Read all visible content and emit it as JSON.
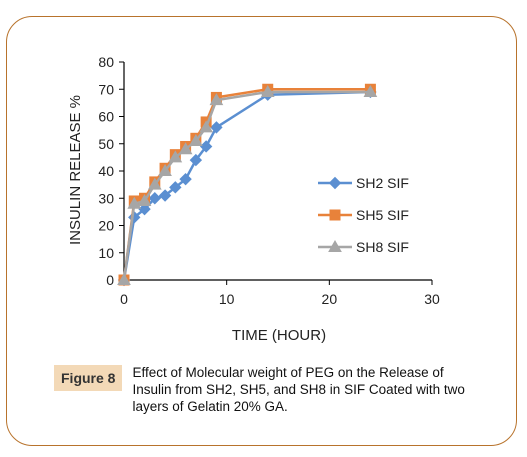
{
  "figure": {
    "label": "Figure 8",
    "caption": "Effect of Molecular weight of PEG on the Release of Insulin from SH2, SH5, and SH8 in SIF Coated with two layers of Gelatin 20% GA."
  },
  "chart_data": {
    "type": "line",
    "title": "",
    "xlabel": "TIME (HOUR)",
    "ylabel": "INSULIN RELEASE %",
    "xlim": [
      0,
      30
    ],
    "ylim": [
      0,
      80
    ],
    "xticks": [
      0,
      10,
      20,
      30
    ],
    "yticks": [
      0,
      10,
      20,
      30,
      40,
      50,
      60,
      70,
      80
    ],
    "grid": false,
    "legend_position": "right",
    "series": [
      {
        "name": "SH2 SIF",
        "color": "#5b8fd1",
        "marker": "diamond",
        "x": [
          0,
          1,
          2,
          3,
          4,
          5,
          6,
          7,
          8,
          9,
          14,
          24
        ],
        "y": [
          0,
          23,
          26,
          30,
          31,
          34,
          37,
          44,
          49,
          56,
          68,
          69
        ]
      },
      {
        "name": "SH5 SIF",
        "color": "#e8823a",
        "marker": "square",
        "x": [
          0,
          1,
          2,
          3,
          4,
          5,
          6,
          7,
          8,
          9,
          14,
          24
        ],
        "y": [
          0,
          29,
          30,
          36,
          41,
          46,
          49,
          52,
          58,
          67,
          70,
          70
        ]
      },
      {
        "name": "SH8 SIF",
        "color": "#a6a6a6",
        "marker": "triangle",
        "x": [
          0,
          1,
          2,
          3,
          4,
          5,
          6,
          7,
          8,
          9,
          14,
          24
        ],
        "y": [
          0,
          28,
          29,
          35,
          40,
          45,
          48,
          51,
          56,
          66,
          69,
          69
        ]
      }
    ]
  }
}
